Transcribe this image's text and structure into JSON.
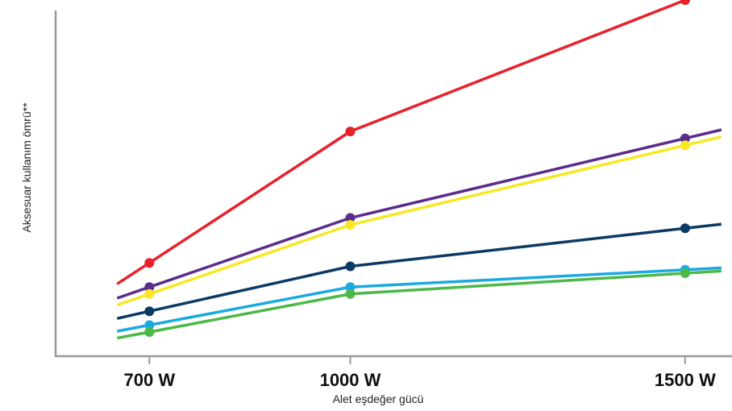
{
  "chart_data": {
    "type": "line",
    "xlabel": "Alet eşdeğer gücü",
    "ylabel": "Aksesuar kullanım ömrü**",
    "categories": [
      "700 W",
      "1000 W",
      "1500 W"
    ],
    "x": [
      700,
      1000,
      1500
    ],
    "xlim": [
      560,
      1570
    ],
    "ylim": [
      0,
      100
    ],
    "grid": false,
    "legend": "none",
    "series": [
      {
        "color": "#e8212b",
        "values": [
          27,
          65,
          103
        ]
      },
      {
        "color": "#5b2c8c",
        "values": [
          20,
          40,
          63
        ]
      },
      {
        "color": "#f7e823",
        "values": [
          18,
          38,
          61
        ]
      },
      {
        "color": "#0b3a64",
        "values": [
          13,
          26,
          37
        ]
      },
      {
        "color": "#1aa9e1",
        "values": [
          9,
          20,
          25
        ]
      },
      {
        "color": "#4cb848",
        "values": [
          7,
          18,
          24
        ]
      }
    ]
  }
}
